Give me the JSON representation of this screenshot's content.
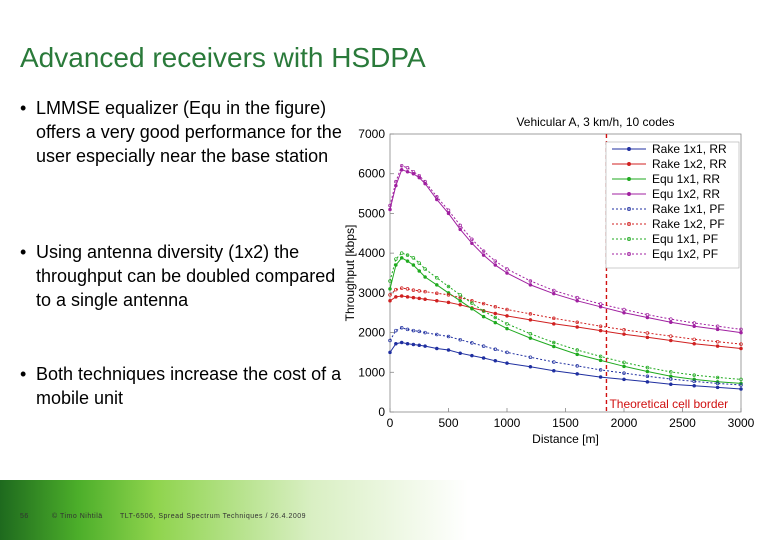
{
  "slide": {
    "title": "Advanced receivers with HSDPA",
    "bullets": [
      {
        "marker": "•",
        "text": "LMMSE equalizer (Equ in the figure) offers a very good performance for the user especially near the base station"
      },
      {
        "marker": "•",
        "text": "Using antenna diversity (1x2) the throughput can be doubled compared to a single antenna"
      },
      {
        "marker": "•",
        "text": "Both techniques increase the cost of a mobile unit"
      }
    ],
    "footer": {
      "page": "56",
      "author": "© Timo Nihtilä",
      "course": "TLT-6506, Spread Spectrum Techniques / 26.4.2009"
    }
  },
  "chart_data": {
    "type": "line",
    "title": "Vehicular A, 3 km/h, 10 codes",
    "xlabel": "Distance [m]",
    "ylabel": "Throughput [kbps]",
    "xlim": [
      0,
      3000
    ],
    "ylim": [
      0,
      7000
    ],
    "xticks": [
      0,
      500,
      1000,
      1500,
      2000,
      2500,
      3000
    ],
    "yticks": [
      0,
      1000,
      2000,
      3000,
      4000,
      5000,
      6000,
      7000
    ],
    "grid": false,
    "legend_position": "top-right",
    "annotation": {
      "text": "Theoretical cell border",
      "x": 1850,
      "color": "#d01010"
    },
    "x": [
      0,
      50,
      100,
      150,
      200,
      250,
      300,
      400,
      500,
      600,
      700,
      800,
      900,
      1000,
      1200,
      1400,
      1600,
      1800,
      2000,
      2200,
      2400,
      2600,
      2800,
      3000
    ],
    "series": [
      {
        "name": "Rake 1x1, RR",
        "color": "#1f2fa0",
        "dash": "solid",
        "values": [
          1500,
          1720,
          1750,
          1720,
          1700,
          1680,
          1660,
          1600,
          1560,
          1480,
          1420,
          1360,
          1290,
          1230,
          1140,
          1040,
          960,
          880,
          820,
          760,
          700,
          660,
          620,
          580
        ]
      },
      {
        "name": "Rake 1x2, RR",
        "color": "#d02020",
        "dash": "solid",
        "values": [
          2800,
          2900,
          2920,
          2900,
          2880,
          2860,
          2840,
          2800,
          2760,
          2700,
          2620,
          2550,
          2480,
          2420,
          2320,
          2220,
          2140,
          2050,
          1960,
          1880,
          1800,
          1720,
          1660,
          1600
        ]
      },
      {
        "name": "Equ 1x1, RR",
        "color": "#1faa1f",
        "dash": "solid",
        "values": [
          3100,
          3700,
          3880,
          3800,
          3700,
          3550,
          3400,
          3200,
          3000,
          2800,
          2600,
          2400,
          2250,
          2100,
          1860,
          1650,
          1450,
          1300,
          1150,
          1020,
          900,
          820,
          760,
          720
        ]
      },
      {
        "name": "Equ 1x2, RR",
        "color": "#a020a0",
        "dash": "solid",
        "values": [
          5100,
          5700,
          6100,
          6050,
          6000,
          5900,
          5750,
          5350,
          5000,
          4600,
          4250,
          3950,
          3700,
          3500,
          3200,
          2980,
          2800,
          2650,
          2500,
          2380,
          2260,
          2160,
          2080,
          2000
        ]
      },
      {
        "name": "Rake 1x1, PF",
        "color": "#1f2fa0",
        "dash": "2,2",
        "values": [
          1800,
          2050,
          2120,
          2080,
          2050,
          2030,
          2000,
          1950,
          1900,
          1820,
          1740,
          1660,
          1580,
          1500,
          1380,
          1260,
          1160,
          1060,
          980,
          900,
          830,
          770,
          720,
          680
        ]
      },
      {
        "name": "Rake 1x2, PF",
        "color": "#d02020",
        "dash": "2,2",
        "values": [
          2950,
          3080,
          3120,
          3100,
          3070,
          3050,
          3030,
          2990,
          2950,
          2880,
          2800,
          2730,
          2650,
          2580,
          2470,
          2360,
          2260,
          2160,
          2070,
          1990,
          1910,
          1830,
          1770,
          1710
        ]
      },
      {
        "name": "Equ 1x1, PF",
        "color": "#1faa1f",
        "dash": "2,2",
        "values": [
          3300,
          3850,
          4000,
          3950,
          3880,
          3750,
          3600,
          3380,
          3160,
          2950,
          2740,
          2540,
          2380,
          2220,
          1970,
          1750,
          1560,
          1400,
          1250,
          1120,
          1010,
          930,
          870,
          820
        ]
      },
      {
        "name": "Equ 1x2, PF",
        "color": "#a020a0",
        "dash": "2,2",
        "values": [
          5200,
          5800,
          6200,
          6150,
          6050,
          5950,
          5800,
          5420,
          5080,
          4700,
          4350,
          4050,
          3800,
          3600,
          3300,
          3060,
          2880,
          2720,
          2580,
          2450,
          2340,
          2240,
          2160,
          2080
        ]
      }
    ]
  }
}
